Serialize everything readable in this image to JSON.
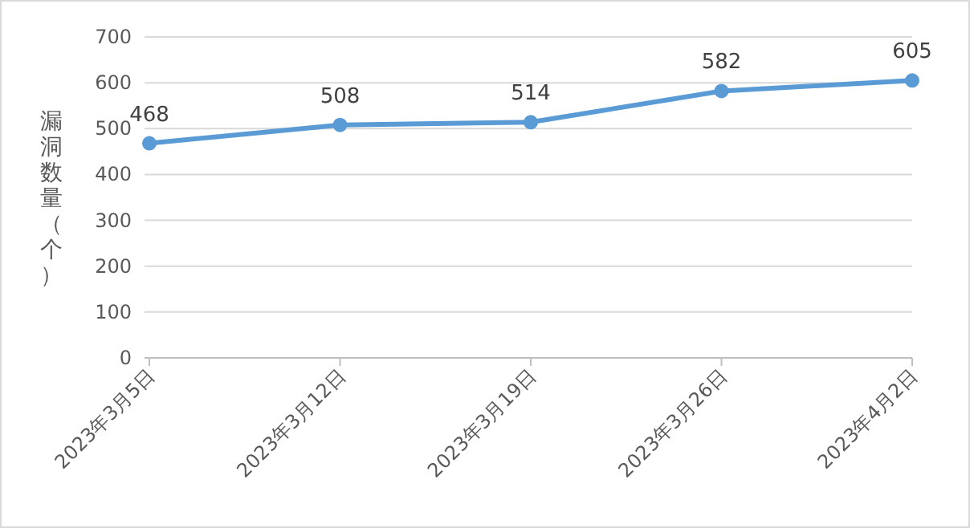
{
  "chart_data": {
    "type": "line",
    "ylabel": "漏洞数量（个）",
    "categories": [
      "2023年3月5日",
      "2023年3月12日",
      "2023年3月19日",
      "2023年3月26日",
      "2023年4月2日"
    ],
    "series": [
      {
        "color": "#5b9bd5",
        "values": [
          468,
          508,
          514,
          582,
          605
        ]
      }
    ],
    "ylim": [
      0,
      700
    ],
    "yticks": [
      0,
      100,
      200,
      300,
      400,
      500,
      600,
      700
    ],
    "grid": "y",
    "marker": "circle",
    "data_labels": true
  }
}
